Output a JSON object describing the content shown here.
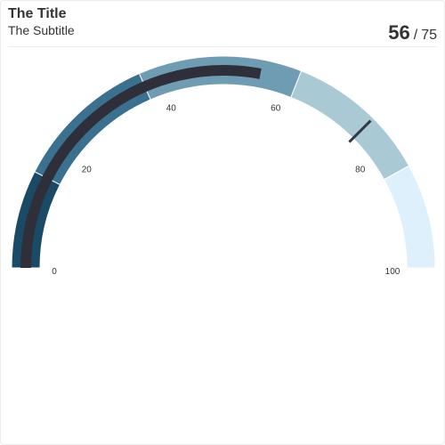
{
  "header": {
    "title": "The Title",
    "subtitle": "The Subtitle",
    "readout_value": "56",
    "readout_separator": "/",
    "readout_target": "75"
  },
  "chart_data": {
    "type": "gauge",
    "title": "The Title",
    "subtitle": "The Subtitle",
    "min": 0,
    "max": 100,
    "value": 56,
    "target": 75,
    "ticks": [
      {
        "value": 0,
        "label": "0"
      },
      {
        "value": 20,
        "label": "20"
      },
      {
        "value": 40,
        "label": "40"
      },
      {
        "value": 60,
        "label": "60"
      },
      {
        "value": 80,
        "label": "80"
      },
      {
        "value": 100,
        "label": "100"
      }
    ],
    "bands": [
      {
        "from": 0,
        "to": 15,
        "color": "#1a4a66"
      },
      {
        "from": 15,
        "to": 37,
        "color": "#3a7090"
      },
      {
        "from": 37,
        "to": 62,
        "color": "#6e9db3"
      },
      {
        "from": 62,
        "to": 84,
        "color": "#a9cad5"
      },
      {
        "from": 84,
        "to": 100,
        "color": "#ddf0fb"
      }
    ],
    "value_color": "#2f2f3a",
    "target_color": "#333844"
  }
}
